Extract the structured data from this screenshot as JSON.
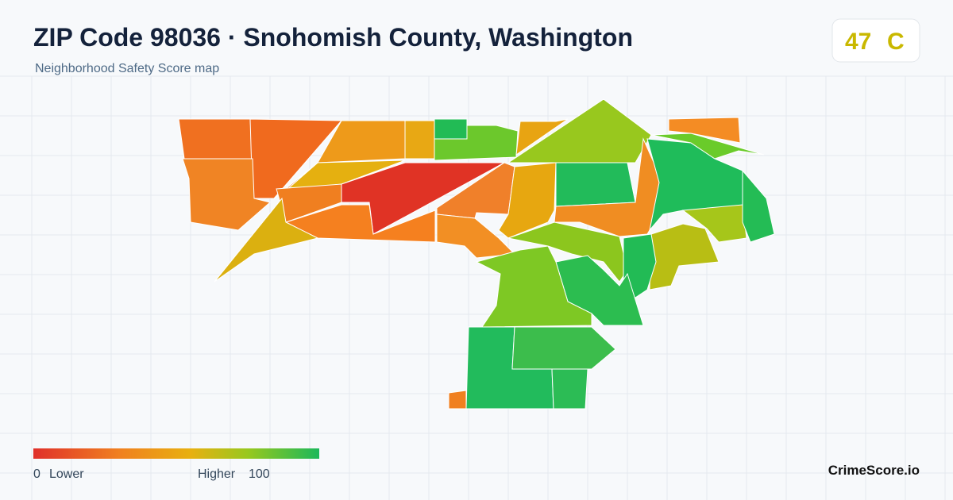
{
  "header": {
    "title": "ZIP Code 98036 · Snohomish County, Washington",
    "subtitle": "Neighborhood Safety Score map"
  },
  "score_badge": {
    "score": 47,
    "grade": "C"
  },
  "legend": {
    "min": 0,
    "min_label": "Lower",
    "max_label": "Higher",
    "max": 100
  },
  "footer": {
    "brand": "CrimeScore.io"
  }
}
